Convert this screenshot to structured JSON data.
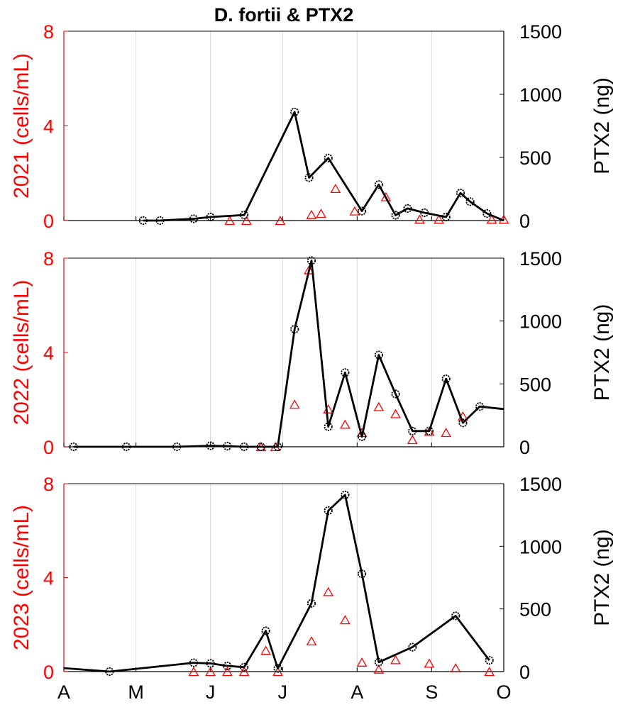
{
  "chart_data": {
    "title": "D. fortii & PTX2",
    "type": "line",
    "colors": {
      "left_axis": "#ff0000",
      "right_axis": "#000000",
      "grid": "#d9d9d9"
    },
    "x_tick_labels": [
      "A",
      "M",
      "J",
      "J",
      "A",
      "S",
      "O"
    ],
    "x_ticks_months": [
      "Apr",
      "May",
      "Jun",
      "Jul",
      "Aug",
      "Sep",
      "Oct"
    ],
    "x_domain_days": [
      0,
      183
    ],
    "x_grid": true,
    "panels": [
      {
        "left_ylabel": "2021 (cells/mL)",
        "right_ylabel": "PTX2 (ng)",
        "left_ylim": [
          0,
          8
        ],
        "left_ticks": [
          "0",
          "4",
          "8"
        ],
        "right_ylim": [
          0,
          1500
        ],
        "right_ticks": [
          "0",
          "500",
          "1000",
          "1500"
        ],
        "series": [
          {
            "name": "D. fortii",
            "axis": "left",
            "marker": "triangle",
            "color": "#ff0000",
            "x": [
              69,
              76,
              90,
              103,
              107,
              113,
              121,
              134,
              148,
              156,
              178,
              183
            ],
            "y": [
              0.0,
              0.0,
              0.0,
              0.25,
              0.3,
              1.35,
              0.4,
              1.0,
              0.05,
              0.05,
              0.05,
              0.05
            ]
          },
          {
            "name": "PTX2",
            "axis": "right",
            "marker": "circle",
            "color": "#000000",
            "x": [
              33,
              40,
              54,
              61,
              75,
              96,
              102,
              110,
              124,
              131,
              138,
              143,
              150,
              159,
              165,
              169,
              176,
              183
            ],
            "y": [
              0,
              0,
              14,
              28,
              44,
              860,
              340,
              495,
              75,
              285,
              42,
              96,
              62,
              28,
              218,
              150,
              56,
              0
            ]
          }
        ]
      },
      {
        "left_ylabel": "2022 (cells/mL)",
        "right_ylabel": "PTX2 (ng)",
        "left_ylim": [
          0,
          8
        ],
        "left_ticks": [
          "0",
          "4",
          "8"
        ],
        "right_ylim": [
          0,
          1500
        ],
        "right_ticks": [
          "0",
          "500",
          "1000",
          "1500"
        ],
        "series": [
          {
            "name": "D. fortii",
            "axis": "left",
            "marker": "triangle",
            "color": "#ff0000",
            "x": [
              82,
              88,
              96,
              102,
              110,
              117,
              124,
              131,
              138,
              145,
              152,
              159,
              166
            ],
            "y": [
              0.0,
              0.0,
              1.8,
              7.5,
              1.6,
              0.95,
              0.6,
              1.7,
              1.4,
              0.3,
              0.65,
              0.6,
              1.3
            ]
          },
          {
            "name": "PTX2",
            "axis": "right",
            "marker": "circle",
            "color": "#000000",
            "x": [
              4,
              26,
              47,
              61,
              68,
              75,
              82,
              89,
              96,
              103,
              110,
              117,
              124,
              131,
              138,
              145,
              152,
              159,
              166,
              173,
              183
            ],
            "y": [
              0,
              0,
              0,
              8,
              5,
              0,
              0,
              0,
              935,
              1480,
              160,
              590,
              80,
              730,
              420,
              125,
              125,
              540,
              190,
              320,
              300
            ]
          }
        ]
      },
      {
        "left_ylabel": "2023 (cells/mL)",
        "right_ylabel": "PTX2 (ng)",
        "left_ylim": [
          0,
          8
        ],
        "left_ticks": [
          "0",
          "4",
          "8"
        ],
        "right_ylim": [
          0,
          1500
        ],
        "right_ticks": [
          "0",
          "500",
          "1000",
          "1500"
        ],
        "series": [
          {
            "name": "D. fortii",
            "axis": "left",
            "marker": "triangle",
            "color": "#ff0000",
            "x": [
              54,
              61,
              68,
              75,
              84,
              89,
              103,
              110,
              117,
              124,
              131,
              138,
              152,
              163,
              177
            ],
            "y": [
              0.0,
              0.0,
              0.0,
              0.0,
              0.9,
              0.0,
              1.3,
              3.4,
              2.2,
              0.4,
              0.1,
              0.5,
              0.35,
              0.15,
              0.0
            ]
          },
          {
            "name": "PTX2",
            "axis": "right",
            "marker": "circle",
            "color": "#000000",
            "x": [
              0,
              19,
              54,
              61,
              68,
              75,
              84,
              89,
              103,
              110,
              117,
              124,
              131,
              145,
              163,
              177
            ],
            "y": [
              28,
              0,
              70,
              65,
              45,
              35,
              325,
              25,
              545,
              1285,
              1410,
              780,
              75,
              195,
              445,
              90
            ]
          }
        ]
      }
    ]
  }
}
